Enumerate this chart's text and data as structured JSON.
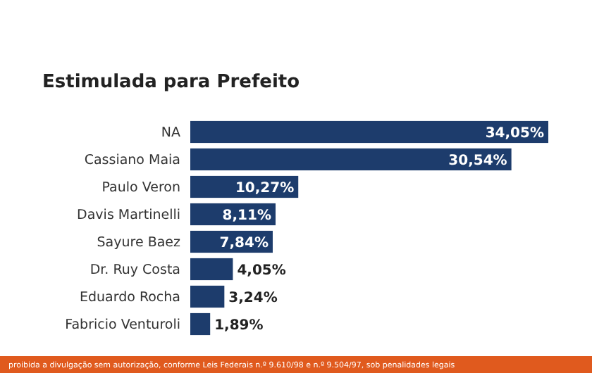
{
  "chart_data": {
    "type": "bar",
    "orientation": "horizontal",
    "title": "Estimulada para Prefeito",
    "categories": [
      "NA",
      "Cassiano Maia",
      "Paulo Veron",
      "Davis Martinelli",
      "Sayure Baez",
      "Dr. Ruy Costa",
      "Eduardo Rocha",
      "Fabricio Venturoli"
    ],
    "values": [
      34.05,
      30.54,
      10.27,
      8.11,
      7.84,
      4.05,
      3.24,
      1.89
    ],
    "value_labels": [
      "34,05%",
      "30,54%",
      "10,27%",
      "8,11%",
      "7,84%",
      "4,05%",
      "3,24%",
      "1,89%"
    ],
    "color": "#1d3c6c",
    "annotations": [
      "proibida a divulgação sem autorização, conforme Leis Federais n.º 9.610/98 e n.º 9.504/97, sob penalidades legais"
    ]
  }
}
